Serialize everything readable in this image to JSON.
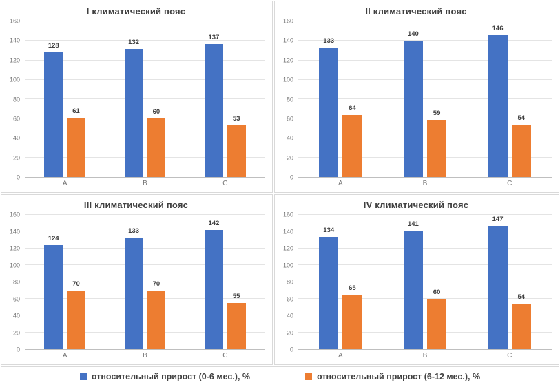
{
  "series_colors": [
    "#4472C4",
    "#ED7D31"
  ],
  "grid_color": "#e4e4e4",
  "axis_line_color": "#bfbfbf",
  "legend": {
    "items": [
      {
        "label": "относительный прирост (0-6 мес.), %",
        "color": "#4472C4"
      },
      {
        "label": "относительный прирост (6-12 мес.), %",
        "color": "#ED7D31"
      }
    ]
  },
  "chart_data": [
    {
      "type": "bar",
      "title": "I климатический пояс",
      "categories": [
        "A",
        "B",
        "C"
      ],
      "series": [
        {
          "name": "относительный прирост (0-6 мес.), %",
          "values": [
            128,
            132,
            137
          ]
        },
        {
          "name": "относительный прирост (6-12 мес.), %",
          "values": [
            61,
            60,
            53
          ]
        }
      ],
      "ylim": [
        0,
        160
      ],
      "yticks": [
        0,
        20,
        40,
        60,
        80,
        100,
        120,
        140,
        160
      ],
      "grid": true,
      "legend_position": "bottom-shared"
    },
    {
      "type": "bar",
      "title": "II климатический пояс",
      "categories": [
        "A",
        "B",
        "C"
      ],
      "series": [
        {
          "name": "относительный прирост (0-6 мес.), %",
          "values": [
            133,
            140,
            146
          ]
        },
        {
          "name": "относительный прирост (6-12 мес.), %",
          "values": [
            64,
            59,
            54
          ]
        }
      ],
      "ylim": [
        0,
        160
      ],
      "yticks": [
        0,
        20,
        40,
        60,
        80,
        100,
        120,
        140,
        160
      ],
      "grid": true,
      "legend_position": "bottom-shared"
    },
    {
      "type": "bar",
      "title": "III климатический пояс",
      "categories": [
        "A",
        "B",
        "C"
      ],
      "series": [
        {
          "name": "относительный прирост (0-6 мес.), %",
          "values": [
            124,
            133,
            142
          ]
        },
        {
          "name": "относительный прирост (6-12 мес.), %",
          "values": [
            70,
            70,
            55
          ]
        }
      ],
      "ylim": [
        0,
        160
      ],
      "yticks": [
        0,
        20,
        40,
        60,
        80,
        100,
        120,
        140,
        160
      ],
      "grid": true,
      "legend_position": "bottom-shared"
    },
    {
      "type": "bar",
      "title": "IV климатический пояс",
      "categories": [
        "A",
        "B",
        "C"
      ],
      "series": [
        {
          "name": "относительный прирост (0-6 мес.), %",
          "values": [
            134,
            141,
            147
          ]
        },
        {
          "name": "относительный прирост (6-12 мес.), %",
          "values": [
            65,
            60,
            54
          ]
        }
      ],
      "ylim": [
        0,
        160
      ],
      "yticks": [
        0,
        20,
        40,
        60,
        80,
        100,
        120,
        140,
        160
      ],
      "grid": true,
      "legend_position": "bottom-shared"
    }
  ]
}
